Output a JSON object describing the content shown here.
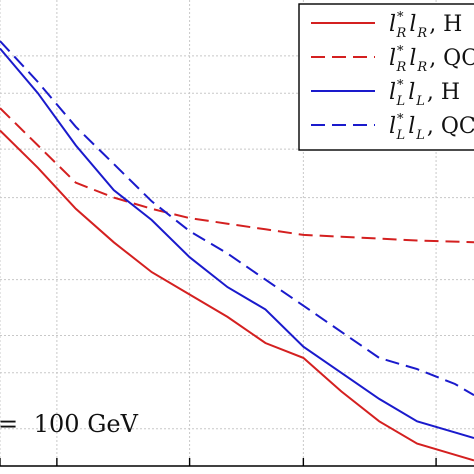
{
  "chart_data": {
    "type": "line",
    "grid": true,
    "legend_placement": "top-right",
    "series": [
      {
        "name_parts": {
          "base": "l",
          "sup1": "*",
          "sub1": "R",
          "base2": "l",
          "sub2": "R",
          "tail": ", H"
        },
        "color": "#d42020",
        "dash": "solid",
        "points": [
          [
            0.0,
            0.9
          ],
          [
            0.1,
            0.8
          ],
          [
            0.2,
            0.69
          ],
          [
            0.3,
            0.6
          ],
          [
            0.4,
            0.52
          ],
          [
            0.5,
            0.46
          ],
          [
            0.6,
            0.4
          ],
          [
            0.7,
            0.33
          ],
          [
            0.8,
            0.29
          ],
          [
            0.9,
            0.2
          ],
          [
            1.0,
            0.12
          ],
          [
            1.1,
            0.06
          ],
          [
            1.2,
            0.03
          ],
          [
            1.25,
            0.015
          ]
        ]
      },
      {
        "name_parts": {
          "base": "l",
          "sup1": "*",
          "sub1": "R",
          "base2": "l",
          "sub2": "R",
          "tail": ", QC"
        },
        "color": "#d42020",
        "dash": "dashed",
        "points": [
          [
            0.0,
            0.96
          ],
          [
            0.1,
            0.86
          ],
          [
            0.2,
            0.76
          ],
          [
            0.3,
            0.72
          ],
          [
            0.4,
            0.69
          ],
          [
            0.5,
            0.665
          ],
          [
            0.6,
            0.65
          ],
          [
            0.7,
            0.635
          ],
          [
            0.8,
            0.62
          ],
          [
            0.9,
            0.615
          ],
          [
            1.0,
            0.61
          ],
          [
            1.1,
            0.605
          ],
          [
            1.2,
            0.602
          ],
          [
            1.25,
            0.6
          ]
        ]
      },
      {
        "name_parts": {
          "base": "l",
          "sup1": "*",
          "sub1": "L",
          "base2": "l",
          "sub2": "L",
          "tail": ", H"
        },
        "color": "#1a1acc",
        "dash": "solid",
        "points": [
          [
            0.0,
            1.12
          ],
          [
            0.1,
            1.0
          ],
          [
            0.2,
            0.86
          ],
          [
            0.3,
            0.74
          ],
          [
            0.4,
            0.66
          ],
          [
            0.5,
            0.56
          ],
          [
            0.6,
            0.48
          ],
          [
            0.7,
            0.42
          ],
          [
            0.8,
            0.32
          ],
          [
            0.9,
            0.25
          ],
          [
            1.0,
            0.18
          ],
          [
            1.1,
            0.12
          ],
          [
            1.2,
            0.09
          ],
          [
            1.25,
            0.075
          ]
        ]
      },
      {
        "name_parts": {
          "base": "l",
          "sup1": "*",
          "sub1": "L",
          "base2": "l",
          "sub2": "L",
          "tail": ", QC"
        },
        "color": "#1a1acc",
        "dash": "dashed",
        "points": [
          [
            0.0,
            1.14
          ],
          [
            0.1,
            1.03
          ],
          [
            0.2,
            0.91
          ],
          [
            0.3,
            0.81
          ],
          [
            0.4,
            0.71
          ],
          [
            0.5,
            0.63
          ],
          [
            0.6,
            0.57
          ],
          [
            0.7,
            0.5
          ],
          [
            0.8,
            0.43
          ],
          [
            0.9,
            0.36
          ],
          [
            1.0,
            0.29
          ],
          [
            1.1,
            0.26
          ],
          [
            1.2,
            0.22
          ],
          [
            1.25,
            0.19
          ]
        ]
      }
    ],
    "x_gridlines": [
      0.0,
      0.15,
      0.5,
      0.8,
      1.15
    ],
    "y_gridlines": [
      0.1,
      0.25,
      0.35,
      0.5,
      0.72,
      0.85,
      1.0,
      1.1
    ],
    "xlim": [
      0.0,
      1.25
    ],
    "ylim": [
      0.0,
      1.25
    ],
    "annotation": {
      "prefix": "=",
      "value": "100 GeV"
    }
  }
}
